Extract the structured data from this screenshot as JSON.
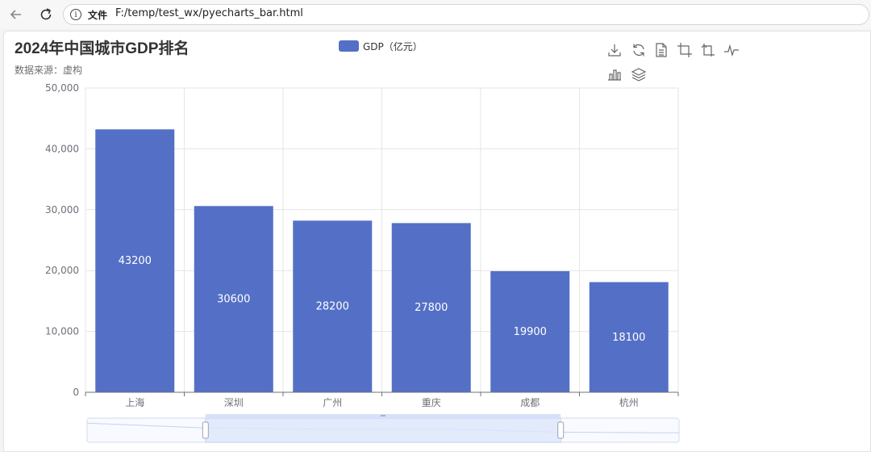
{
  "browser": {
    "back_icon": "arrow-left-icon",
    "reload_icon": "reload-icon",
    "info_icon": "info-icon",
    "scheme_label": "文件",
    "url": "F:/temp/test_wx/pyecharts_bar.html"
  },
  "toolbox": {
    "icons": [
      "download-icon",
      "refresh-icon",
      "data-view-icon",
      "zoom-icon",
      "zoom-reset-icon",
      "line-switch-icon",
      "bar-switch-icon",
      "stack-icon"
    ]
  },
  "colors": {
    "bar": "#5470c6",
    "zoom_fill": "#dce6fb",
    "zoom_border": "#d2dbee"
  },
  "chart_data": {
    "type": "bar",
    "title": "2024年中国城市GDP排名",
    "subtitle": "数据来源：虚构",
    "legend": {
      "name": "GDP（亿元）",
      "position": "top-center"
    },
    "categories": [
      "上海",
      "深圳",
      "广州",
      "重庆",
      "成都",
      "杭州"
    ],
    "series": [
      {
        "name": "GDP（亿元）",
        "values": [
          43200,
          30600,
          28200,
          27800,
          19900,
          18100
        ]
      }
    ],
    "ylim": [
      0,
      50000
    ],
    "yticks": [
      "0",
      "10,000",
      "20,000",
      "30,000",
      "40,000",
      "50,000"
    ],
    "grid": true,
    "data_labels": "inside",
    "datazoom": {
      "type": "slider",
      "start_percent": 20,
      "end_percent": 80
    }
  }
}
